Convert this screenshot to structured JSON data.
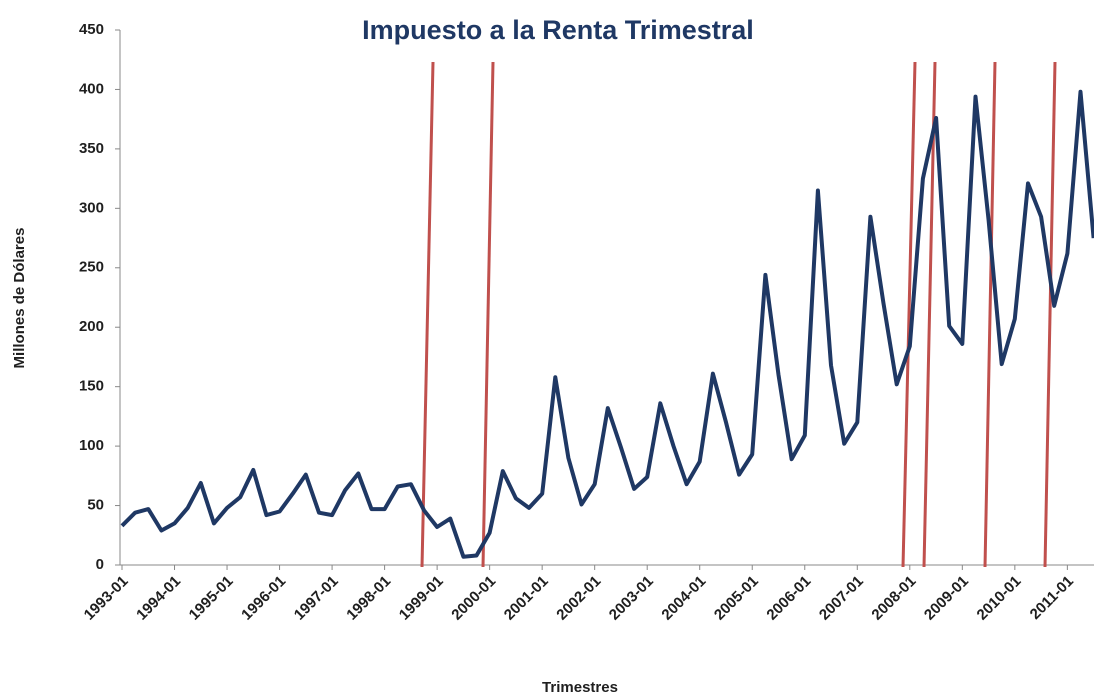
{
  "chart_data": {
    "type": "line",
    "title": "Impuesto a la Renta Trimestral",
    "x_label": "Trimestres",
    "y_label": "Millones de Dólares",
    "categories": [
      "1993-01",
      null,
      null,
      null,
      "1994-01",
      null,
      null,
      null,
      "1995-01",
      null,
      null,
      null,
      "1996-01",
      null,
      null,
      null,
      "1997-01",
      null,
      null,
      null,
      "1998-01",
      null,
      null,
      null,
      "1999-01",
      null,
      null,
      null,
      "2000-01",
      null,
      null,
      null,
      "2001-01",
      null,
      null,
      null,
      "2002-01",
      null,
      null,
      null,
      "2003-01",
      null,
      null,
      null,
      "2004-01",
      null,
      null,
      null,
      "2005-01",
      null,
      null,
      null,
      "2006-01",
      null,
      null,
      null,
      "2007-01",
      null,
      null,
      null,
      "2008-01",
      null,
      null,
      null,
      "2009-01",
      null,
      null,
      null,
      "2010-01",
      null,
      null,
      null,
      "2011-01",
      null,
      null
    ],
    "series": [
      {
        "color": "#1f3864",
        "values": [
          33,
          44,
          47,
          29,
          35,
          48,
          69,
          35,
          48,
          57,
          80,
          42,
          45,
          60,
          76,
          44,
          42,
          63,
          77,
          47,
          47,
          66,
          68,
          46,
          32,
          39,
          7,
          8,
          27,
          79,
          56,
          48,
          60,
          158,
          90,
          51,
          68,
          132,
          99,
          64,
          74,
          136,
          100,
          68,
          87,
          161,
          120,
          76,
          93,
          244,
          160,
          89,
          109,
          315,
          168,
          102,
          120,
          293,
          220,
          152,
          184,
          325,
          376,
          201,
          186,
          394,
          290,
          169,
          207,
          321,
          293,
          218,
          262,
          398,
          275
        ]
      }
    ],
    "ylim": [
      0,
      450
    ],
    "yticks": [
      0,
      50,
      100,
      150,
      200,
      250,
      300,
      350,
      400,
      450
    ],
    "grid": false
  }
}
